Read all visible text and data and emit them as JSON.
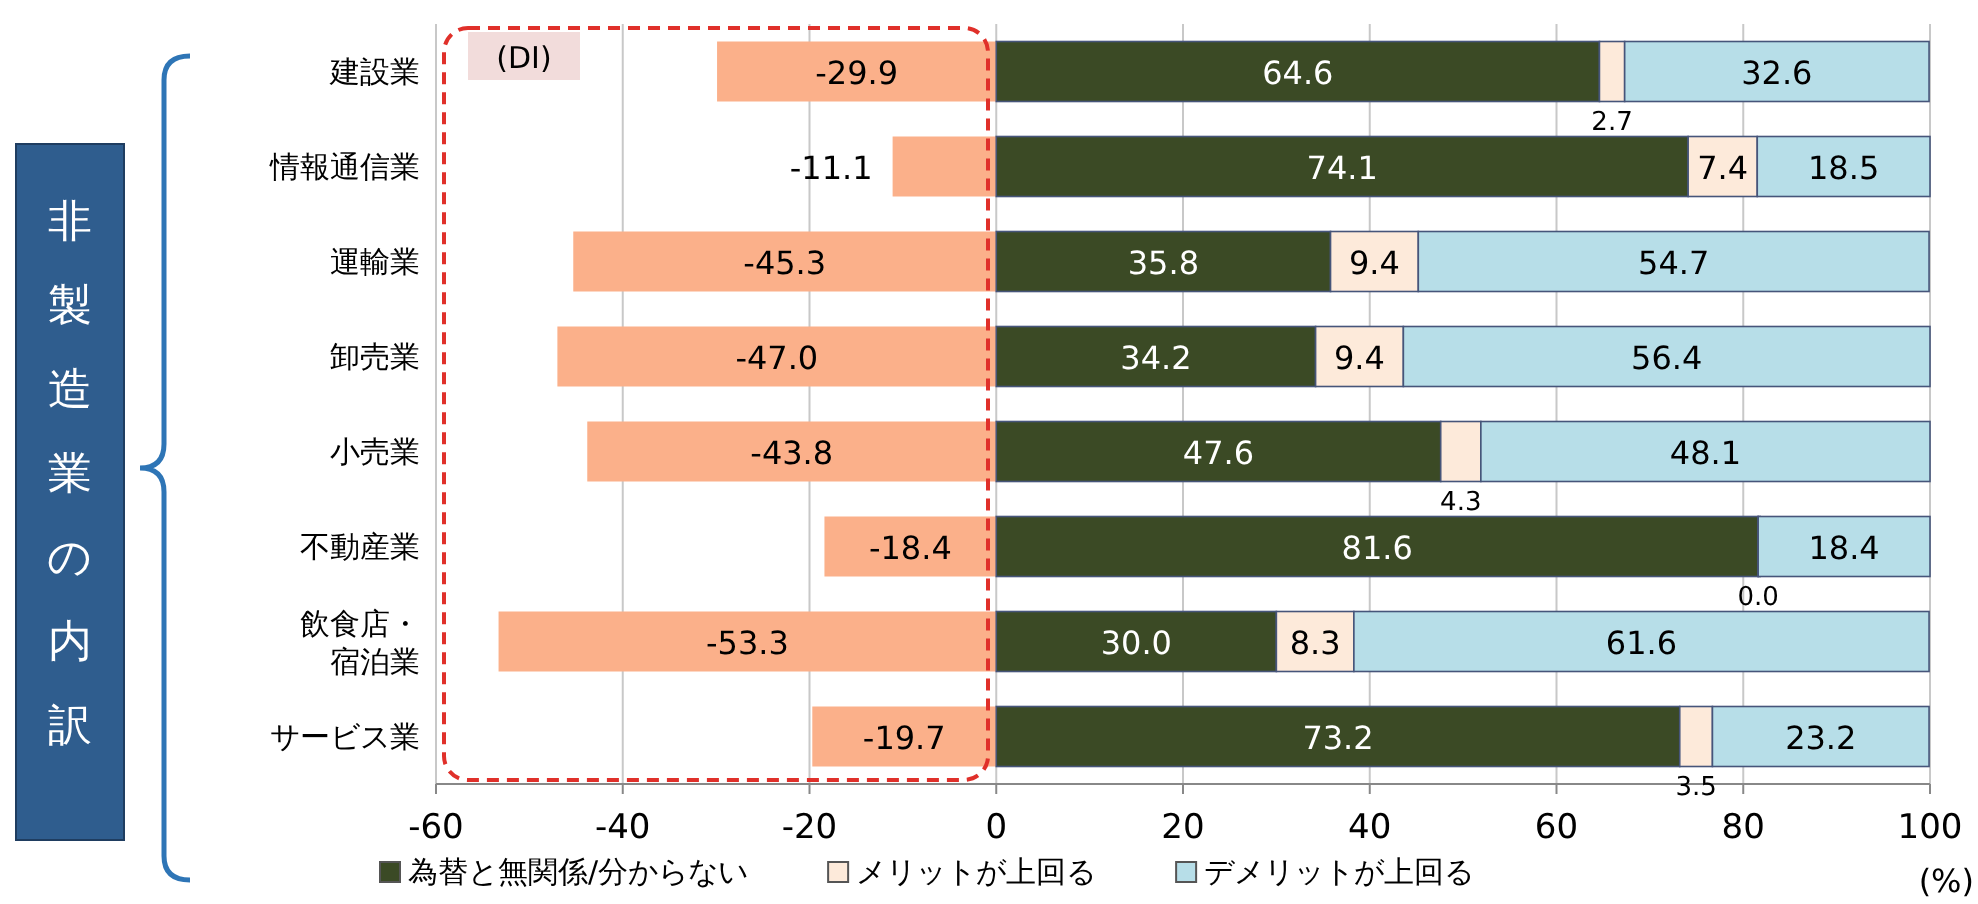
{
  "chart_data": {
    "type": "bar",
    "orientation": "horizontal",
    "stacked": true,
    "categories": [
      "建設業",
      "情報通信業",
      "運輸業",
      "卸売業",
      "小売業",
      "不動産業",
      "飲食店・宿泊業",
      "サービス業"
    ],
    "series": [
      {
        "color": "#fbb08a",
        "values": [
          -29.9,
          -11.1,
          -45.3,
          -47.0,
          -43.8,
          -18.4,
          -53.3,
          -19.7
        ],
        "value_labels": [
          "-29.9",
          "-11.1",
          "-45.3",
          "-47.0",
          "-43.8",
          "-18.4",
          "-53.3",
          "-19.7"
        ]
      },
      {
        "name": "為替と無関係/分からない",
        "color": "#3b4a25",
        "values": [
          64.6,
          74.1,
          35.8,
          34.2,
          47.6,
          81.6,
          30.0,
          73.2
        ],
        "value_labels": [
          "64.6",
          "74.1",
          "35.8",
          "34.2",
          "47.6",
          "81.6",
          "30.0",
          "73.2"
        ]
      },
      {
        "name": "メリットが上回る",
        "color": "#fdeada",
        "values": [
          2.7,
          7.4,
          9.4,
          9.4,
          4.3,
          0.0,
          8.3,
          3.5
        ],
        "value_labels": [
          "2.7",
          "7.4",
          "9.4",
          "9.4",
          "4.3",
          "0.0",
          "8.3",
          "3.5"
        ]
      },
      {
        "name": "デメリットが上回る",
        "color": "#b7dee8",
        "values": [
          32.6,
          18.5,
          54.7,
          56.4,
          48.1,
          18.4,
          61.6,
          23.2
        ],
        "value_labels": [
          "32.6",
          "18.5",
          "54.7",
          "56.4",
          "48.1",
          "18.4",
          "61.6",
          "23.2"
        ]
      }
    ],
    "xlim": [
      -60,
      100
    ],
    "xticks": [
      -60,
      -40,
      -20,
      0,
      20,
      40,
      60,
      80,
      100
    ],
    "xlabel": "(%)",
    "grid": "x",
    "legend": "bottom",
    "annotations": [
      "(DI)",
      "非製造業の内訳"
    ]
  }
}
